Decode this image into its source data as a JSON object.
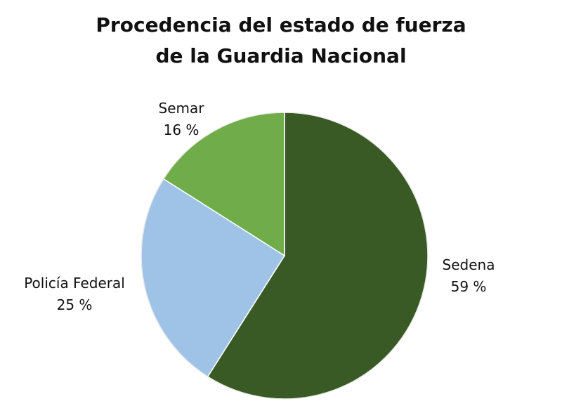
{
  "chart_data": {
    "type": "pie",
    "title": [
      "Procedencia del estado de fuerza",
      "de la Guardia Nacional"
    ],
    "slices": [
      {
        "label": "Sedena",
        "value": 59,
        "value_text": "59 %",
        "color": "#3a5a25"
      },
      {
        "label": "Policía Federal",
        "value": 25,
        "value_text": "25 %",
        "color": "#9fc3e6"
      },
      {
        "label": "Semar",
        "value": 16,
        "value_text": "16 %",
        "color": "#70ad4a"
      }
    ],
    "start_angle": "top",
    "direction": "clockwise",
    "legend": "none"
  }
}
